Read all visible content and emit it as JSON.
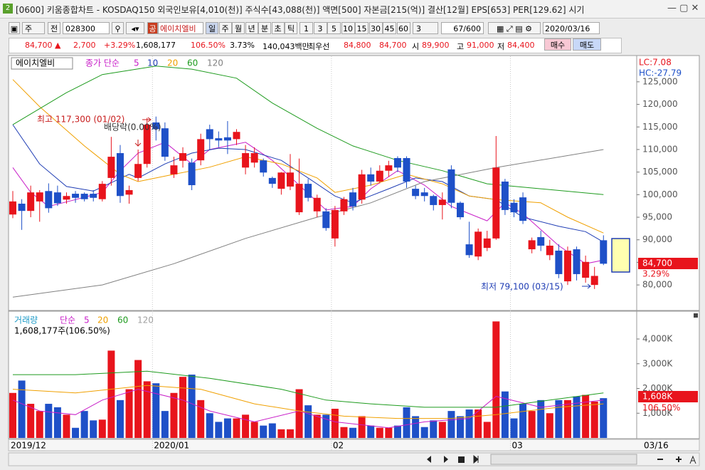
{
  "window": {
    "title": "[0600] 키움종합차트 - KOSDAQ150 외국인보유[4,010(천)] 주식수[43,088(천)] 액면[500] 자본금[215(억)] 결산[12월] EPS[653] PER[129.62] 시기"
  },
  "toolbar": {
    "market": "주",
    "prev": "전",
    "code": "028300",
    "tag": "공",
    "name": "에이치엘비",
    "periods": [
      "일",
      "주",
      "월",
      "년",
      "분",
      "초",
      "틱"
    ],
    "intervals": [
      "1",
      "3",
      "5",
      "10",
      "15",
      "30",
      "45",
      "60"
    ],
    "interval_value": "3",
    "count": "67/600",
    "date": "2020/03/16"
  },
  "quote": {
    "price": "84,700 ▲",
    "change": "2,700",
    "change_pct": "+3.29%",
    "volume": "1,608,177",
    "volume_ratio": "106.50%",
    "turnover": "3.73%",
    "amount": "140,043백만",
    "best_label": "최우선",
    "ask": "84,800",
    "bid": "84,700",
    "open_label": "시",
    "open": "89,900",
    "high_label": "고",
    "high": "91,000",
    "low_label": "저",
    "low": "84,400",
    "buy": "매수",
    "sell": "매도"
  },
  "chart_data": [
    {
      "type": "candlestick",
      "name_label": "에이치엘비",
      "ma_label": "종가 단순",
      "up_color": "#e8141c",
      "down_color": "#1e50c8",
      "open": [
        95600,
        98000,
        96400,
        98500,
        100800,
        100500,
        98900,
        100200,
        100200,
        100200,
        99000,
        103700,
        109200,
        100000,
        103700,
        106800,
        116000,
        114700,
        104500,
        107500,
        107100,
        107600,
        114500,
        112500,
        112700,
        112300,
        106000,
        107100,
        107600,
        103700,
        101300,
        101800,
        96100,
        102400,
        96300,
        96300,
        90300,
        96300,
        100500,
        98900,
        104500,
        102900,
        105300,
        108100,
        108100,
        101300,
        100500,
        99700,
        97700,
        105600,
        98200,
        89000,
        86300,
        88200,
        90300,
        102900,
        98200,
        99400,
        87900,
        90600,
        86600,
        87600,
        80800,
        87900,
        81600,
        80000,
        89900
      ],
      "high": [
        100800,
        99000,
        102000,
        101000,
        102500,
        102000,
        100500,
        100800,
        100500,
        101000,
        103000,
        112800,
        111000,
        102000,
        110000,
        117000,
        117300,
        116000,
        108400,
        110500,
        108000,
        113500,
        115500,
        114000,
        116300,
        114500,
        111000,
        110500,
        108000,
        104000,
        105000,
        109000,
        108000,
        103500,
        100000,
        97000,
        97500,
        99500,
        101500,
        105500,
        106000,
        106500,
        107500,
        108500,
        108500,
        102000,
        101500,
        100000,
        100500,
        106500,
        98500,
        94000,
        92500,
        92000,
        113000,
        103500,
        99000,
        100500,
        90500,
        92000,
        90000,
        89000,
        88500,
        88500,
        86500,
        84000,
        91000
      ],
      "low": [
        94800,
        92200,
        95000,
        94000,
        96000,
        97500,
        98000,
        98200,
        98500,
        98500,
        98500,
        102000,
        98200,
        98000,
        103000,
        106000,
        112000,
        107500,
        103700,
        106000,
        101000,
        106500,
        110000,
        110500,
        109000,
        111000,
        104500,
        106000,
        104000,
        101500,
        100000,
        101000,
        95500,
        98500,
        95000,
        92000,
        88500,
        95500,
        96500,
        98000,
        102000,
        102500,
        104000,
        105000,
        101500,
        99000,
        98500,
        96500,
        94500,
        97000,
        94500,
        86000,
        85500,
        87500,
        90000,
        95500,
        95000,
        93500,
        87000,
        87500,
        85500,
        81500,
        80000,
        81000,
        80500,
        79100,
        84400
      ],
      "close": [
        98500,
        96400,
        100500,
        100500,
        97000,
        98100,
        99700,
        99300,
        99000,
        99300,
        102400,
        108400,
        99700,
        101000,
        106800,
        115500,
        114500,
        108400,
        106500,
        109200,
        102100,
        112300,
        112300,
        112000,
        112000,
        113900,
        109200,
        109200,
        104900,
        102400,
        104900,
        104900,
        102400,
        99300,
        99300,
        92600,
        96600,
        99000,
        97400,
        104500,
        102900,
        105300,
        106500,
        106000,
        102900,
        99700,
        99700,
        97700,
        98900,
        98200,
        95000,
        86600,
        91800,
        90300,
        106000,
        96600,
        96100,
        94200,
        89900,
        88700,
        88700,
        82400,
        87600,
        82400,
        85100,
        82000,
        84700
      ],
      "series": [
        {
          "name": "5",
          "color": "#c81ec8",
          "x": [
            0,
            2,
            4,
            7,
            10,
            12,
            14,
            17,
            20,
            22,
            26,
            29,
            32,
            35,
            38,
            40,
            43,
            46,
            49,
            53,
            55,
            57,
            61,
            64,
            66
          ],
          "values": [
            106000,
            100500,
            97400,
            98900,
            100500,
            105300,
            109200,
            111600,
            106800,
            110000,
            111600,
            107600,
            102100,
            96600,
            97400,
            101300,
            105300,
            102100,
            97400,
            94200,
            98200,
            95800,
            88700,
            84700,
            85500
          ]
        },
        {
          "name": "10",
          "color": "#1e3cb4",
          "x": [
            0,
            3,
            6,
            9,
            13,
            14,
            17,
            20,
            23,
            26,
            30,
            33,
            36,
            38,
            42,
            45,
            48,
            51,
            54,
            57,
            61,
            64,
            66
          ],
          "values": [
            115500,
            106800,
            101800,
            100800,
            104500,
            103700,
            106800,
            109200,
            110300,
            110000,
            107600,
            103700,
            99700,
            98200,
            101300,
            103700,
            102900,
            99700,
            98900,
            95000,
            93000,
            91800,
            89500
          ]
        },
        {
          "name": "20",
          "color": "#f0a000",
          "x": [
            0,
            3,
            8,
            12,
            14,
            18,
            22,
            26,
            30,
            34,
            36,
            40,
            44,
            48,
            51,
            54,
            59,
            62,
            66
          ],
          "values": [
            125500,
            119500,
            110800,
            104500,
            102900,
            104500,
            106100,
            108400,
            106800,
            103700,
            100500,
            102100,
            104500,
            102400,
            99700,
            98900,
            98200,
            95000,
            91500
          ]
        },
        {
          "name": "60",
          "color": "#1e9b1e",
          "x": [
            0,
            6,
            10,
            16,
            20,
            25,
            29,
            34,
            38,
            43,
            48,
            53,
            59,
            66
          ],
          "values": [
            115500,
            122600,
            126600,
            128500,
            127800,
            125800,
            120300,
            114700,
            110800,
            107600,
            105300,
            102400,
            101300,
            100000
          ]
        },
        {
          "name": "120",
          "color": "#808080",
          "x": [
            0,
            10,
            18,
            26,
            34,
            40,
            46,
            54,
            66
          ],
          "values": [
            77300,
            80000,
            84700,
            90300,
            95000,
            98200,
            102900,
            106000,
            110000
          ]
        }
      ],
      "ylim": [
        74500,
        130500
      ],
      "yticks": [
        {
          "value": 80000,
          "label": "80,000"
        },
        {
          "value": 85000,
          "label": "85,000"
        },
        {
          "value": 90000,
          "label": "90,000"
        },
        {
          "value": 95000,
          "label": "95,000"
        },
        {
          "value": 100000,
          "label": "100,000"
        },
        {
          "value": 105000,
          "label": "105,000"
        },
        {
          "value": 110000,
          "label": "110,000"
        },
        {
          "value": 115000,
          "label": "115,000"
        },
        {
          "value": 120000,
          "label": "120,000"
        },
        {
          "value": 125000,
          "label": "125,000"
        }
      ],
      "lc": "LC:7.08",
      "hc": "HC:-27.79",
      "last_price_label": "84,700",
      "last_change_label": "3.29%",
      "annotations": [
        "최고 117,300 (01/02)",
        "배당락(0.00%)",
        "최저 79,100 (03/15)"
      ]
    },
    {
      "type": "bar",
      "title": "거래량",
      "ma_label": "단순",
      "summary": "1,608,177주(106.50%)",
      "categories": [
        "2019/12",
        null,
        null,
        null,
        null,
        null,
        null,
        null,
        null,
        null,
        null,
        null,
        null,
        null,
        null,
        null,
        "2020/01",
        null,
        null,
        null,
        null,
        null,
        null,
        null,
        null,
        null,
        null,
        null,
        null,
        null,
        null,
        null,
        null,
        null,
        null,
        null,
        "02",
        null,
        null,
        null,
        null,
        null,
        null,
        null,
        null,
        null,
        null,
        null,
        null,
        null,
        null,
        null,
        null,
        null,
        null,
        null,
        "03",
        null,
        null,
        null,
        null,
        null,
        null,
        null,
        null,
        null,
        null
      ],
      "values": [
        1820,
        2320,
        1380,
        1090,
        1380,
        1240,
        940,
        410,
        1090,
        710,
        740,
        3530,
        1530,
        1970,
        3150,
        2290,
        2210,
        1090,
        1820,
        2470,
        2560,
        1530,
        1000,
        650,
        790,
        790,
        940,
        650,
        500,
        590,
        350,
        350,
        1970,
        1320,
        940,
        940,
        1180,
        440,
        410,
        880,
        500,
        410,
        410,
        500,
        1240,
        880,
        440,
        710,
        650,
        1090,
        880,
        1150,
        1150,
        650,
        4710,
        1880,
        790,
        1380,
        1090,
        1530,
        1000,
        1530,
        1530,
        1680,
        1740,
        1470,
        1608
      ],
      "series": [
        {
          "name": "5",
          "color": "#c81ec8",
          "x": [
            0,
            3,
            7,
            10,
            14,
            19,
            22,
            27,
            32,
            36,
            42,
            46,
            51,
            54,
            59,
            66
          ],
          "values": [
            1530,
            1090,
            940,
            1530,
            1970,
            1530,
            1090,
            650,
            1090,
            650,
            410,
            650,
            790,
            1680,
            1240,
            1530
          ]
        },
        {
          "name": "20",
          "color": "#f0a000",
          "x": [
            0,
            7,
            15,
            21,
            27,
            32,
            37,
            43,
            49,
            54,
            61,
            66
          ],
          "values": [
            1970,
            1820,
            2120,
            1970,
            1380,
            1090,
            880,
            790,
            790,
            940,
            1240,
            1380
          ]
        },
        {
          "name": "60",
          "color": "#1e9b1e",
          "x": [
            0,
            7,
            15,
            22,
            30,
            35,
            40,
            46,
            54,
            66
          ],
          "values": [
            2560,
            2560,
            2700,
            2410,
            1970,
            1530,
            1380,
            1240,
            1240,
            1820
          ]
        }
      ],
      "legend_extra": [
        {
          "name": "120",
          "color": "#a0a0a0"
        }
      ],
      "ylim": [
        0,
        5060
      ],
      "yticks": [
        {
          "value": 1000,
          "label": "1,000K"
        },
        {
          "value": 2000,
          "label": "2,000K"
        },
        {
          "value": 3000,
          "label": "3,000K"
        },
        {
          "value": 4000,
          "label": "4,000K"
        }
      ],
      "current_label": "1,608K",
      "current_pct": "106.50%",
      "end_label": "03/16"
    }
  ]
}
